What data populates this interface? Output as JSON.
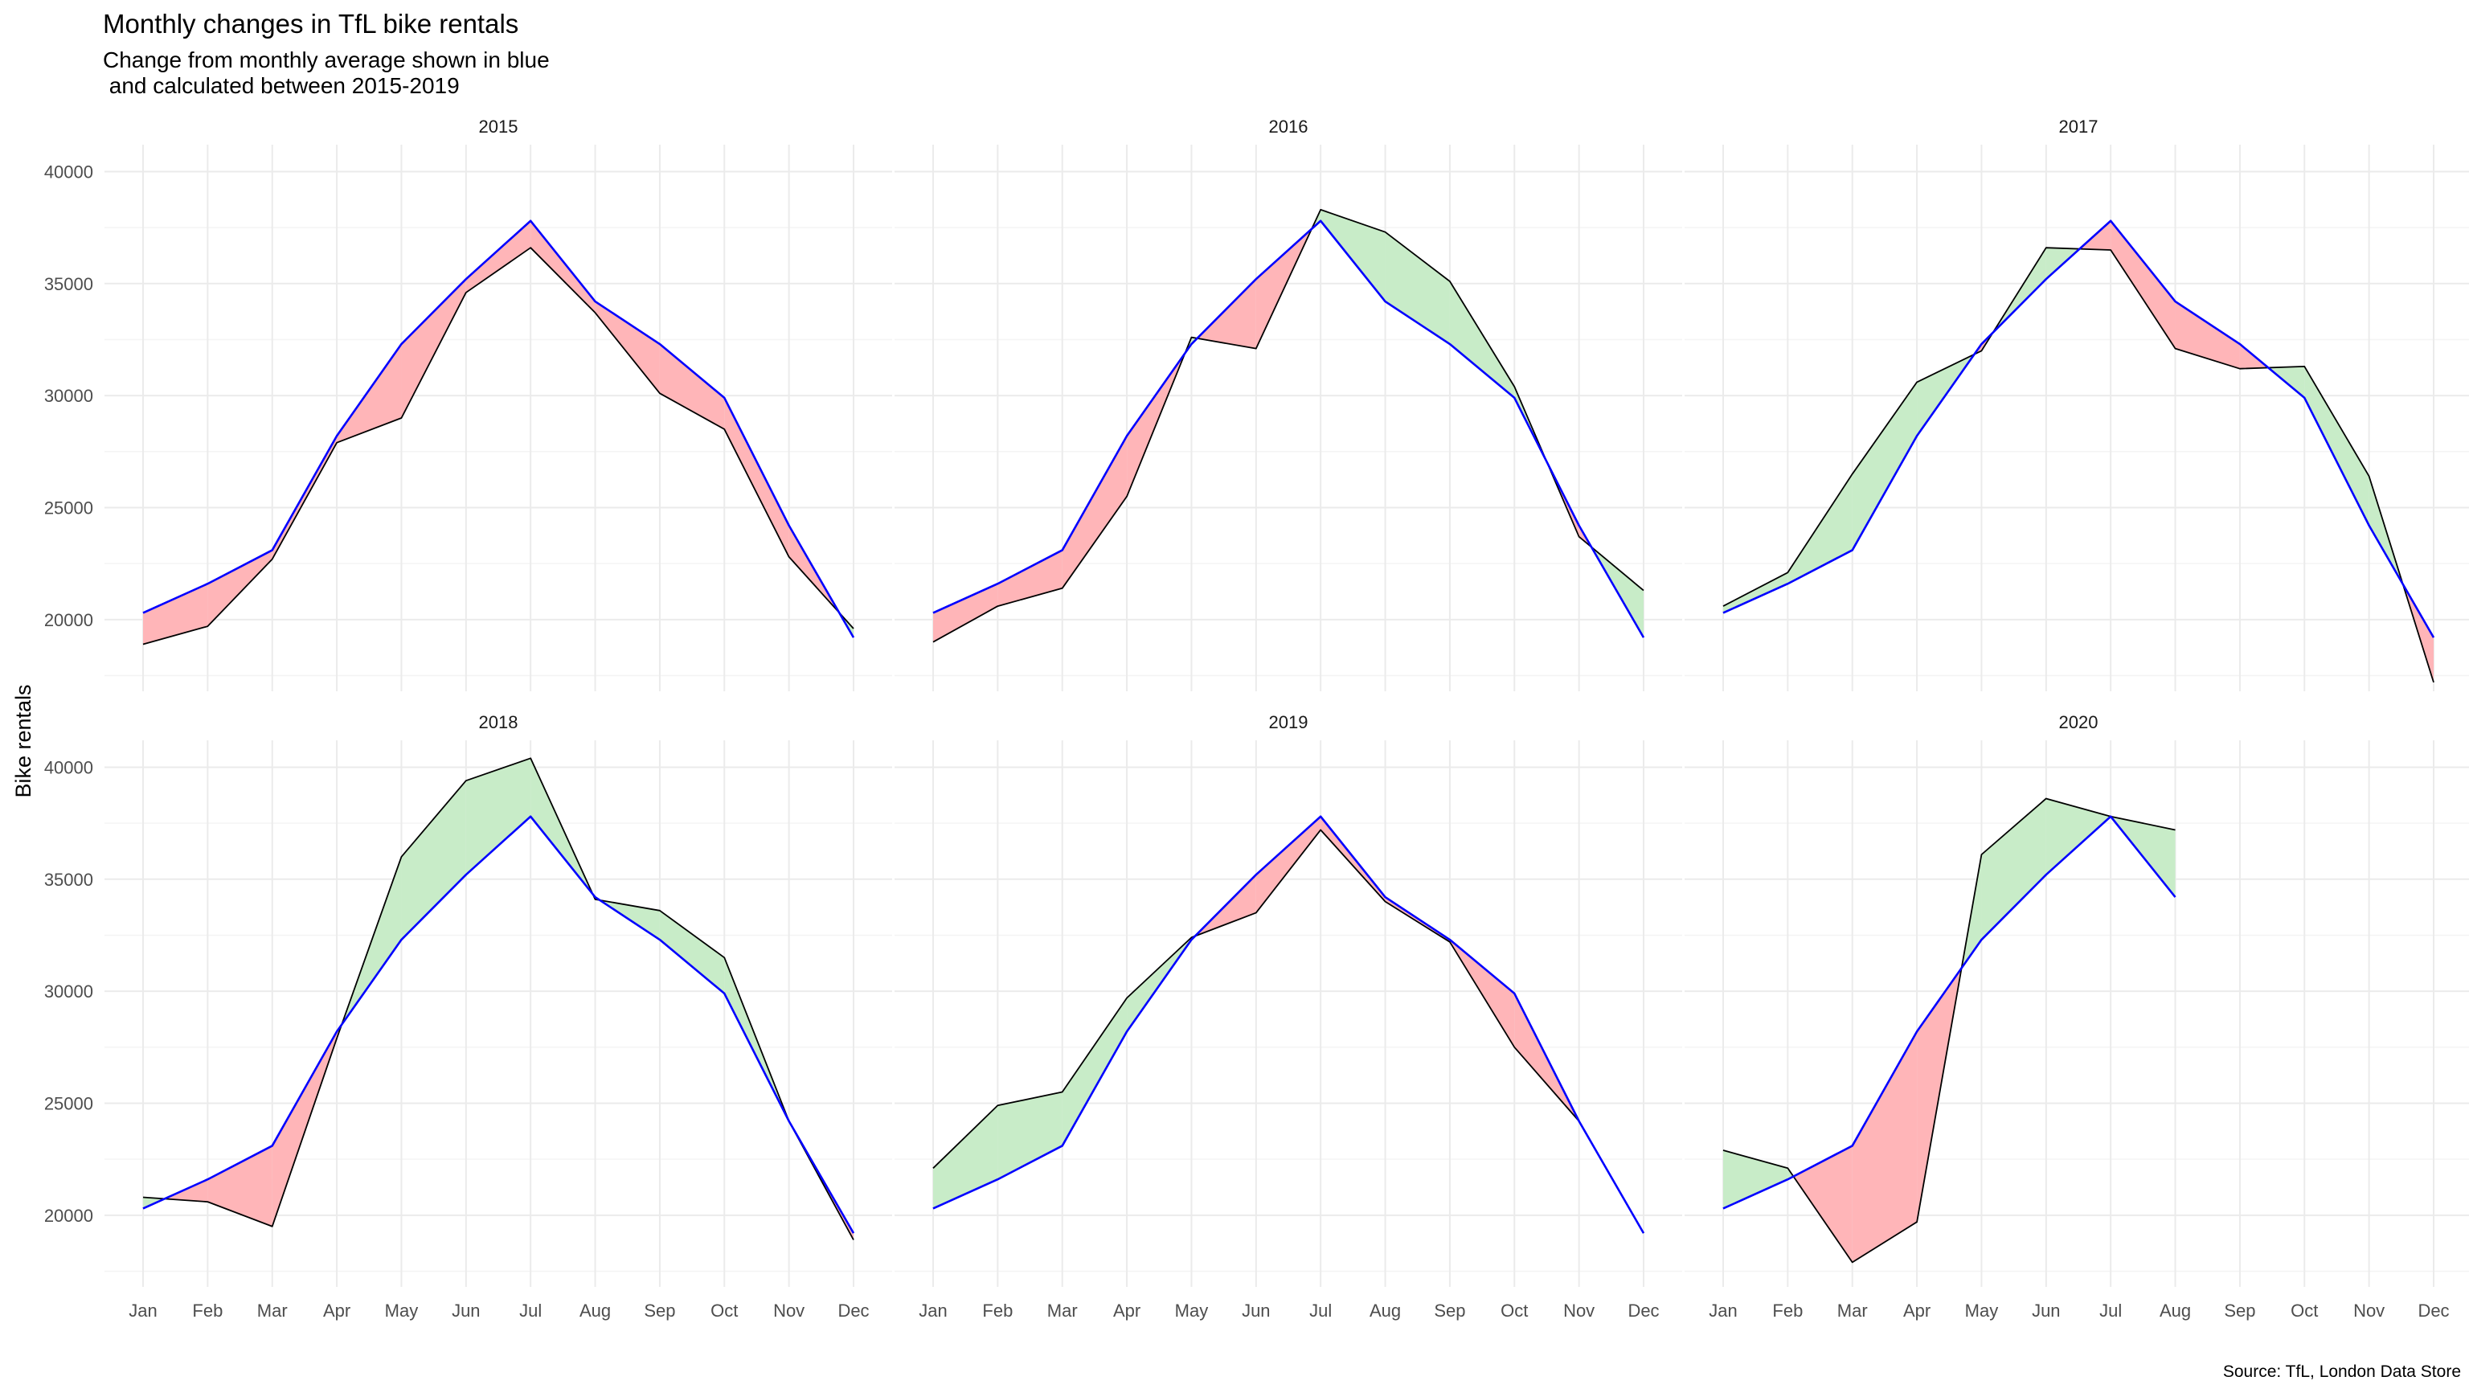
{
  "chart_data": {
    "type": "area",
    "title": "Monthly changes in TfL bike rentals",
    "subtitle_line1": "Change from monthly average shown in blue",
    "subtitle_line2": " and calculated between 2015-2019",
    "ylabel": "Bike rentals",
    "caption": "Source: TfL, London Data Store",
    "ylim": [
      16800,
      41200
    ],
    "y_ticks": [
      20000,
      25000,
      30000,
      35000,
      40000
    ],
    "months": [
      "Jan",
      "Feb",
      "Mar",
      "Apr",
      "May",
      "Jun",
      "Jul",
      "Aug",
      "Sep",
      "Oct",
      "Nov",
      "Dec"
    ],
    "colors": {
      "average_line": "#0000ff",
      "actual_line": "#000000",
      "above_fill": "#c8ecc8",
      "below_fill": "#ffb5b8"
    },
    "monthly_average": [
      20300,
      21600,
      23100,
      28200,
      32300,
      35200,
      37800,
      34200,
      32300,
      29900,
      24200,
      19200
    ],
    "panels": [
      {
        "year": "2015",
        "values": [
          18900,
          19700,
          22700,
          27900,
          29000,
          34600,
          36600,
          33700,
          30100,
          28500,
          22800,
          19600
        ]
      },
      {
        "year": "2016",
        "values": [
          19000,
          20600,
          21400,
          25500,
          32600,
          32100,
          38300,
          37300,
          35100,
          30400,
          23700,
          21300
        ]
      },
      {
        "year": "2017",
        "values": [
          20600,
          22100,
          26500,
          30600,
          32000,
          36600,
          36500,
          32100,
          31200,
          31300,
          26400,
          17200
        ]
      },
      {
        "year": "2018",
        "values": [
          20800,
          20600,
          19500,
          27900,
          36000,
          39400,
          40400,
          34100,
          33600,
          31500,
          24200,
          18900
        ]
      },
      {
        "year": "2019",
        "values": [
          22100,
          24900,
          25500,
          29700,
          32400,
          33500,
          37200,
          34000,
          32200,
          27500,
          24200,
          19200
        ]
      },
      {
        "year": "2020",
        "values": [
          22900,
          22100,
          17900,
          19700,
          36100,
          38600,
          37800,
          37200
        ]
      }
    ]
  }
}
